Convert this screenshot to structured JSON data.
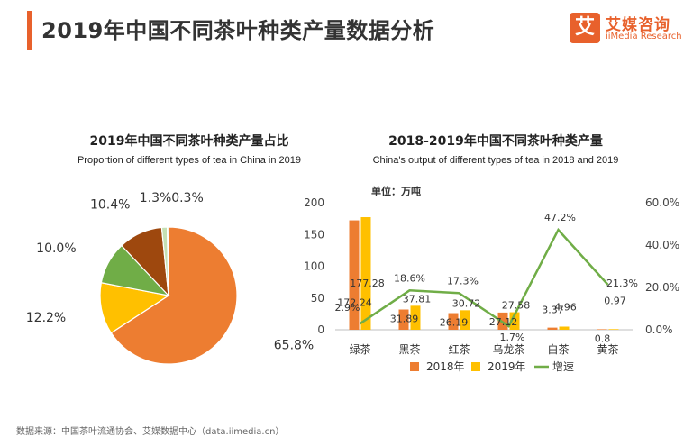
{
  "header": {
    "title": "2019年中国不同茶叶种类产量数据分析",
    "accent_color": "#E8612C",
    "logo": {
      "icon_char": "艾",
      "cn": "艾媒咨询",
      "en": "iiMedia Research",
      "color": "#E8612C"
    }
  },
  "pie": {
    "title_cn": "2019年中国不同茶叶种类产量占比",
    "title_en": "Proportion of different types of tea in China in 2019"
  },
  "bar": {
    "title_cn": "2018-2019年中国不同茶叶种类产量",
    "title_en": "China's output of different types of tea in 2018 and 2019",
    "unit": "单位：万吨"
  },
  "footer": {
    "source": "数据来源：中国茶叶流通协会、艾媒数据中心（data.iimedia.cn）"
  },
  "chart_data": [
    {
      "type": "pie",
      "title": "2019年中国不同茶叶种类产量占比",
      "slices": [
        {
          "label": "65.8%",
          "value": 65.8,
          "color": "#ED7D31"
        },
        {
          "label": "12.2%",
          "value": 12.2,
          "color": "#FFC000"
        },
        {
          "label": "10.0%",
          "value": 10.0,
          "color": "#70AD47"
        },
        {
          "label": "10.4%",
          "value": 10.4,
          "color": "#9E480E"
        },
        {
          "label": "1.3%",
          "value": 1.3,
          "color": "#C5E0B4"
        },
        {
          "label": "0.3%",
          "value": 0.3,
          "color": "#A9D18E"
        }
      ]
    },
    {
      "type": "bar",
      "title": "2018-2019年中国不同茶叶种类产量",
      "categories": [
        "绿茶",
        "黑茶",
        "红茶",
        "乌龙茶",
        "白茶",
        "黄茶"
      ],
      "series": [
        {
          "name": "2018年",
          "kind": "bar",
          "axis": "left",
          "color": "#ED7D31",
          "values": [
            172.24,
            31.89,
            26.19,
            27.12,
            3.37,
            0.8
          ],
          "labels": [
            "172.24",
            "31.89",
            "26.19",
            "27.12",
            "3.37",
            "0.8"
          ]
        },
        {
          "name": "2019年",
          "kind": "bar",
          "axis": "left",
          "color": "#FFC000",
          "values": [
            177.28,
            37.81,
            30.72,
            27.58,
            4.96,
            0.97
          ],
          "labels": [
            "177.28",
            "37.81",
            "30.72",
            "27.58",
            "4.96",
            "0.97"
          ]
        },
        {
          "name": "增速",
          "kind": "line",
          "axis": "right",
          "color": "#70AD47",
          "values": [
            2.9,
            18.6,
            17.3,
            1.7,
            47.2,
            21.3
          ],
          "labels": [
            "2.9%",
            "18.6%",
            "17.3%",
            "1.7%",
            "47.2%",
            "21.3%"
          ]
        }
      ],
      "y_left": {
        "min": 0,
        "max": 200,
        "ticks": [
          "0",
          "50",
          "100",
          "150",
          "200"
        ]
      },
      "y_right": {
        "min": 0,
        "max": 60,
        "ticks": [
          "0.0%",
          "20.0%",
          "40.0%",
          "60.0%"
        ]
      },
      "legend_position": "bottom"
    }
  ]
}
